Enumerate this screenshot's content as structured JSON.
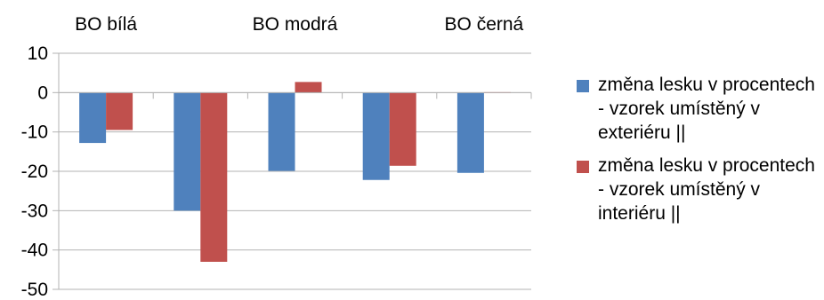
{
  "chart_data": {
    "type": "bar",
    "categories": [
      "BO bílá",
      "",
      "BO modrá",
      "",
      "BO černá"
    ],
    "series": [
      {
        "name": "změna lesku v procentech - vzorek umístěný v exteriéru ||",
        "color": "#4F81BD",
        "values": [
          -12.8,
          -30.0,
          -19.9,
          -22.2,
          -20.4
        ]
      },
      {
        "name": "změna lesku v procentech - vzorek umístěný v interiéru ||",
        "color": "#C0504D",
        "values": [
          -9.5,
          -43.0,
          2.7,
          -18.6,
          0.1
        ]
      }
    ],
    "yticks": [
      10,
      0,
      -10,
      -20,
      -30,
      -40,
      -50
    ],
    "ylim": [
      -50,
      10
    ],
    "grid": true,
    "legend": "right",
    "category_labels_position": "top"
  }
}
